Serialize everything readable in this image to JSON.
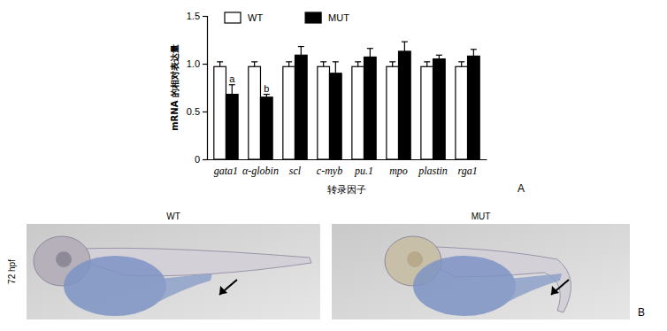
{
  "chart_data": {
    "type": "bar",
    "y_label": "mRNA 的相对表达量",
    "x_label": "转录因子",
    "panel_label": "A",
    "categories": [
      "gata1",
      "α-globin",
      "scl",
      "c-myb",
      "pu.1",
      "mpo",
      "plastin",
      "rga1"
    ],
    "series": [
      {
        "name": "WT",
        "color": "#ffffff",
        "values": [
          0.97,
          0.97,
          0.97,
          0.97,
          0.97,
          0.97,
          0.97,
          0.97
        ],
        "errors": [
          0.05,
          0.05,
          0.05,
          0.05,
          0.05,
          0.05,
          0.05,
          0.05
        ]
      },
      {
        "name": "MUT",
        "color": "#000000",
        "values": [
          0.68,
          0.65,
          1.09,
          0.9,
          1.07,
          1.13,
          1.05,
          1.08
        ],
        "errors": [
          0.1,
          0.03,
          0.09,
          0.12,
          0.09,
          0.1,
          0.04,
          0.07
        ]
      }
    ],
    "annotations": [
      {
        "text": "a",
        "category": "gata1",
        "series": "MUT"
      },
      {
        "text": "b",
        "category": "α-globin",
        "series": "MUT"
      }
    ],
    "ylim": [
      0,
      1.5
    ],
    "yticks": [
      0,
      0.5,
      {
        "value": 1,
        "label": "1.0"
      },
      1.5
    ],
    "legend": "top",
    "grid": false
  },
  "panel_b": {
    "label": "B",
    "row_label": "72 hpf",
    "images": [
      {
        "title": "WT"
      },
      {
        "title": "MUT"
      }
    ]
  }
}
